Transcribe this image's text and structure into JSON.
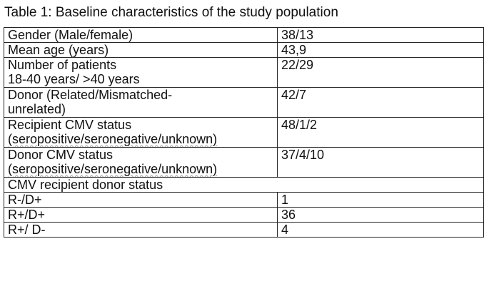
{
  "caption": "Table 1: Baseline characteristics of the study population",
  "rows": [
    {
      "label_lines": [
        "Gender (Male/female)"
      ],
      "value": "38/13"
    },
    {
      "label_lines": [
        "Mean age (years)"
      ],
      "value": "43,9"
    },
    {
      "label_lines": [
        "Number of patients",
        "18-40 years/ >40 years"
      ],
      "value": "22/29"
    },
    {
      "label_lines": [
        "Donor (Related/Mismatched-",
        "unrelated)"
      ],
      "value": "42/7"
    },
    {
      "label_lines": [
        "Recipient CMV status",
        "(seropositive/seronegative/unknown)"
      ],
      "value": "48/1/2"
    },
    {
      "label_lines": [
        "Donor CMV status",
        "(seropositive/seronegative/unknown)"
      ],
      "value": "37/4/10"
    },
    {
      "section": "CMV recipient donor status"
    },
    {
      "label_lines": [
        "R-/D+"
      ],
      "value": "1"
    },
    {
      "label_lines": [
        "R+/D+"
      ],
      "value": "36"
    },
    {
      "label_lines": [
        "R+/ D-"
      ],
      "value": "4"
    }
  ]
}
